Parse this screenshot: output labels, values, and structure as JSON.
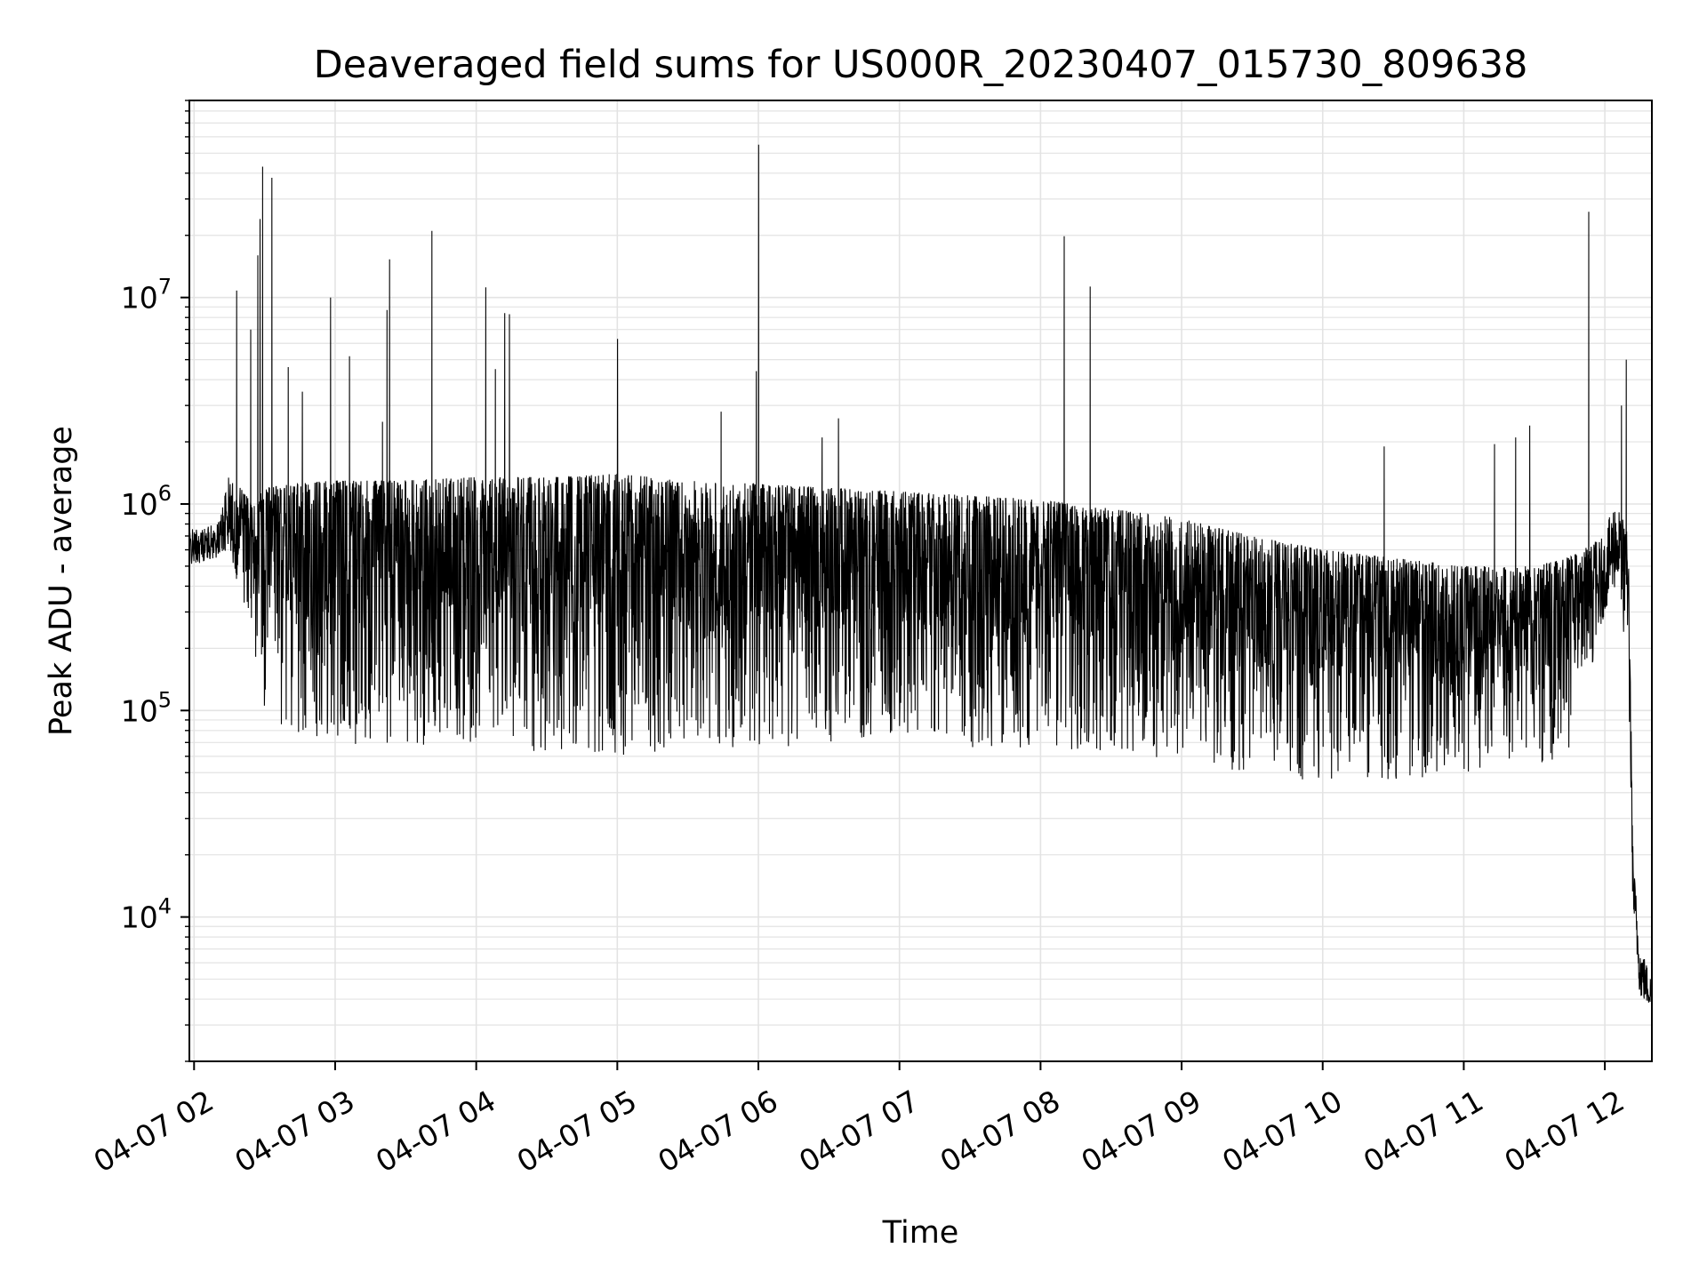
{
  "chart_data": {
    "type": "line",
    "title": "Deaveraged field sums for US000R_20230407_015730_809638",
    "xlabel": "Time",
    "ylabel": "Peak ADU - average",
    "y_scale": "log",
    "grid": true,
    "legend": "none",
    "x_tick_labels": [
      "04-07 02",
      "04-07 03",
      "04-07 04",
      "04-07 05",
      "04-07 06",
      "04-07 07",
      "04-07 08",
      "04-07 09",
      "04-07 10",
      "04-07 11",
      "04-07 12"
    ],
    "y_tick_labels": [
      {
        "base": "10",
        "exp": "4"
      },
      {
        "base": "10",
        "exp": "5"
      },
      {
        "base": "10",
        "exp": "6"
      },
      {
        "base": "10",
        "exp": "7"
      }
    ],
    "xlim": [
      "2023-04-07 01:58",
      "2023-04-07 12:20"
    ],
    "ylim": [
      2000,
      90000000
    ],
    "series": [
      {
        "color": "#000000",
        "envelope": {
          "x": [
            "2023-04-07 01:58",
            "2023-04-07 02:10",
            "2023-04-07 02:15",
            "2023-04-07 02:25",
            "2023-04-07 02:30",
            "2023-04-07 02:40",
            "2023-04-07 03:00",
            "2023-04-07 03:30",
            "2023-04-07 04:00",
            "2023-04-07 04:30",
            "2023-04-07 05:00",
            "2023-04-07 05:30",
            "2023-04-07 06:00",
            "2023-04-07 06:30",
            "2023-04-07 07:00",
            "2023-04-07 07:30",
            "2023-04-07 08:00",
            "2023-04-07 08:30",
            "2023-04-07 09:00",
            "2023-04-07 09:30",
            "2023-04-07 10:00",
            "2023-04-07 10:30",
            "2023-04-07 11:00",
            "2023-04-07 11:30",
            "2023-04-07 11:45",
            "2023-04-07 12:00",
            "2023-04-07 12:05",
            "2023-04-07 12:10",
            "2023-04-07 12:12",
            "2023-04-07 12:15",
            "2023-04-07 12:20"
          ],
          "low": [
            500000,
            550000,
            600000,
            200000,
            100000,
            80000,
            70000,
            65000,
            65000,
            62000,
            60000,
            65000,
            65000,
            70000,
            68000,
            65000,
            65000,
            62000,
            55000,
            50000,
            45000,
            45000,
            50000,
            55000,
            60000,
            300000,
            400000,
            150000,
            10000,
            4000,
            3500
          ],
          "high": [
            750000,
            800000,
            1400000,
            1000000,
            1200000,
            1250000,
            1300000,
            1300000,
            1350000,
            1350000,
            1400000,
            1300000,
            1250000,
            1200000,
            1150000,
            1100000,
            1050000,
            950000,
            850000,
            700000,
            600000,
            550000,
            500000,
            500000,
            550000,
            700000,
            1200000,
            700000,
            20000,
            7500,
            5000
          ]
        },
        "spikes": [
          {
            "x": "2023-04-07 02:18",
            "y": 10800000
          },
          {
            "x": "2023-04-07 02:24",
            "y": 7000000
          },
          {
            "x": "2023-04-07 02:27",
            "y": 16000000
          },
          {
            "x": "2023-04-07 02:28",
            "y": 24000000
          },
          {
            "x": "2023-04-07 02:29",
            "y": 43000000
          },
          {
            "x": "2023-04-07 02:33",
            "y": 38000000
          },
          {
            "x": "2023-04-07 02:40",
            "y": 4600000
          },
          {
            "x": "2023-04-07 02:46",
            "y": 3500000
          },
          {
            "x": "2023-04-07 02:58",
            "y": 10000000
          },
          {
            "x": "2023-04-07 03:06",
            "y": 5200000
          },
          {
            "x": "2023-04-07 03:20",
            "y": 2500000
          },
          {
            "x": "2023-04-07 03:22",
            "y": 8700000
          },
          {
            "x": "2023-04-07 03:23",
            "y": 15300000
          },
          {
            "x": "2023-04-07 03:41",
            "y": 21000000
          },
          {
            "x": "2023-04-07 04:04",
            "y": 11200000
          },
          {
            "x": "2023-04-07 04:08",
            "y": 4500000
          },
          {
            "x": "2023-04-07 04:12",
            "y": 8400000
          },
          {
            "x": "2023-04-07 04:14",
            "y": 8300000
          },
          {
            "x": "2023-04-07 05:00",
            "y": 6300000
          },
          {
            "x": "2023-04-07 05:44",
            "y": 2800000
          },
          {
            "x": "2023-04-07 05:59",
            "y": 4400000
          },
          {
            "x": "2023-04-07 06:00",
            "y": 55000000
          },
          {
            "x": "2023-04-07 06:27",
            "y": 2100000
          },
          {
            "x": "2023-04-07 06:34",
            "y": 2600000
          },
          {
            "x": "2023-04-07 08:10",
            "y": 19800000
          },
          {
            "x": "2023-04-07 08:21",
            "y": 11300000
          },
          {
            "x": "2023-04-07 10:26",
            "y": 1900000
          },
          {
            "x": "2023-04-07 11:13",
            "y": 1950000
          },
          {
            "x": "2023-04-07 11:22",
            "y": 2100000
          },
          {
            "x": "2023-04-07 11:28",
            "y": 2400000
          },
          {
            "x": "2023-04-07 11:53",
            "y": 26000000
          },
          {
            "x": "2023-04-07 12:07",
            "y": 3000000
          },
          {
            "x": "2023-04-07 12:09",
            "y": 5000000
          }
        ]
      }
    ]
  }
}
